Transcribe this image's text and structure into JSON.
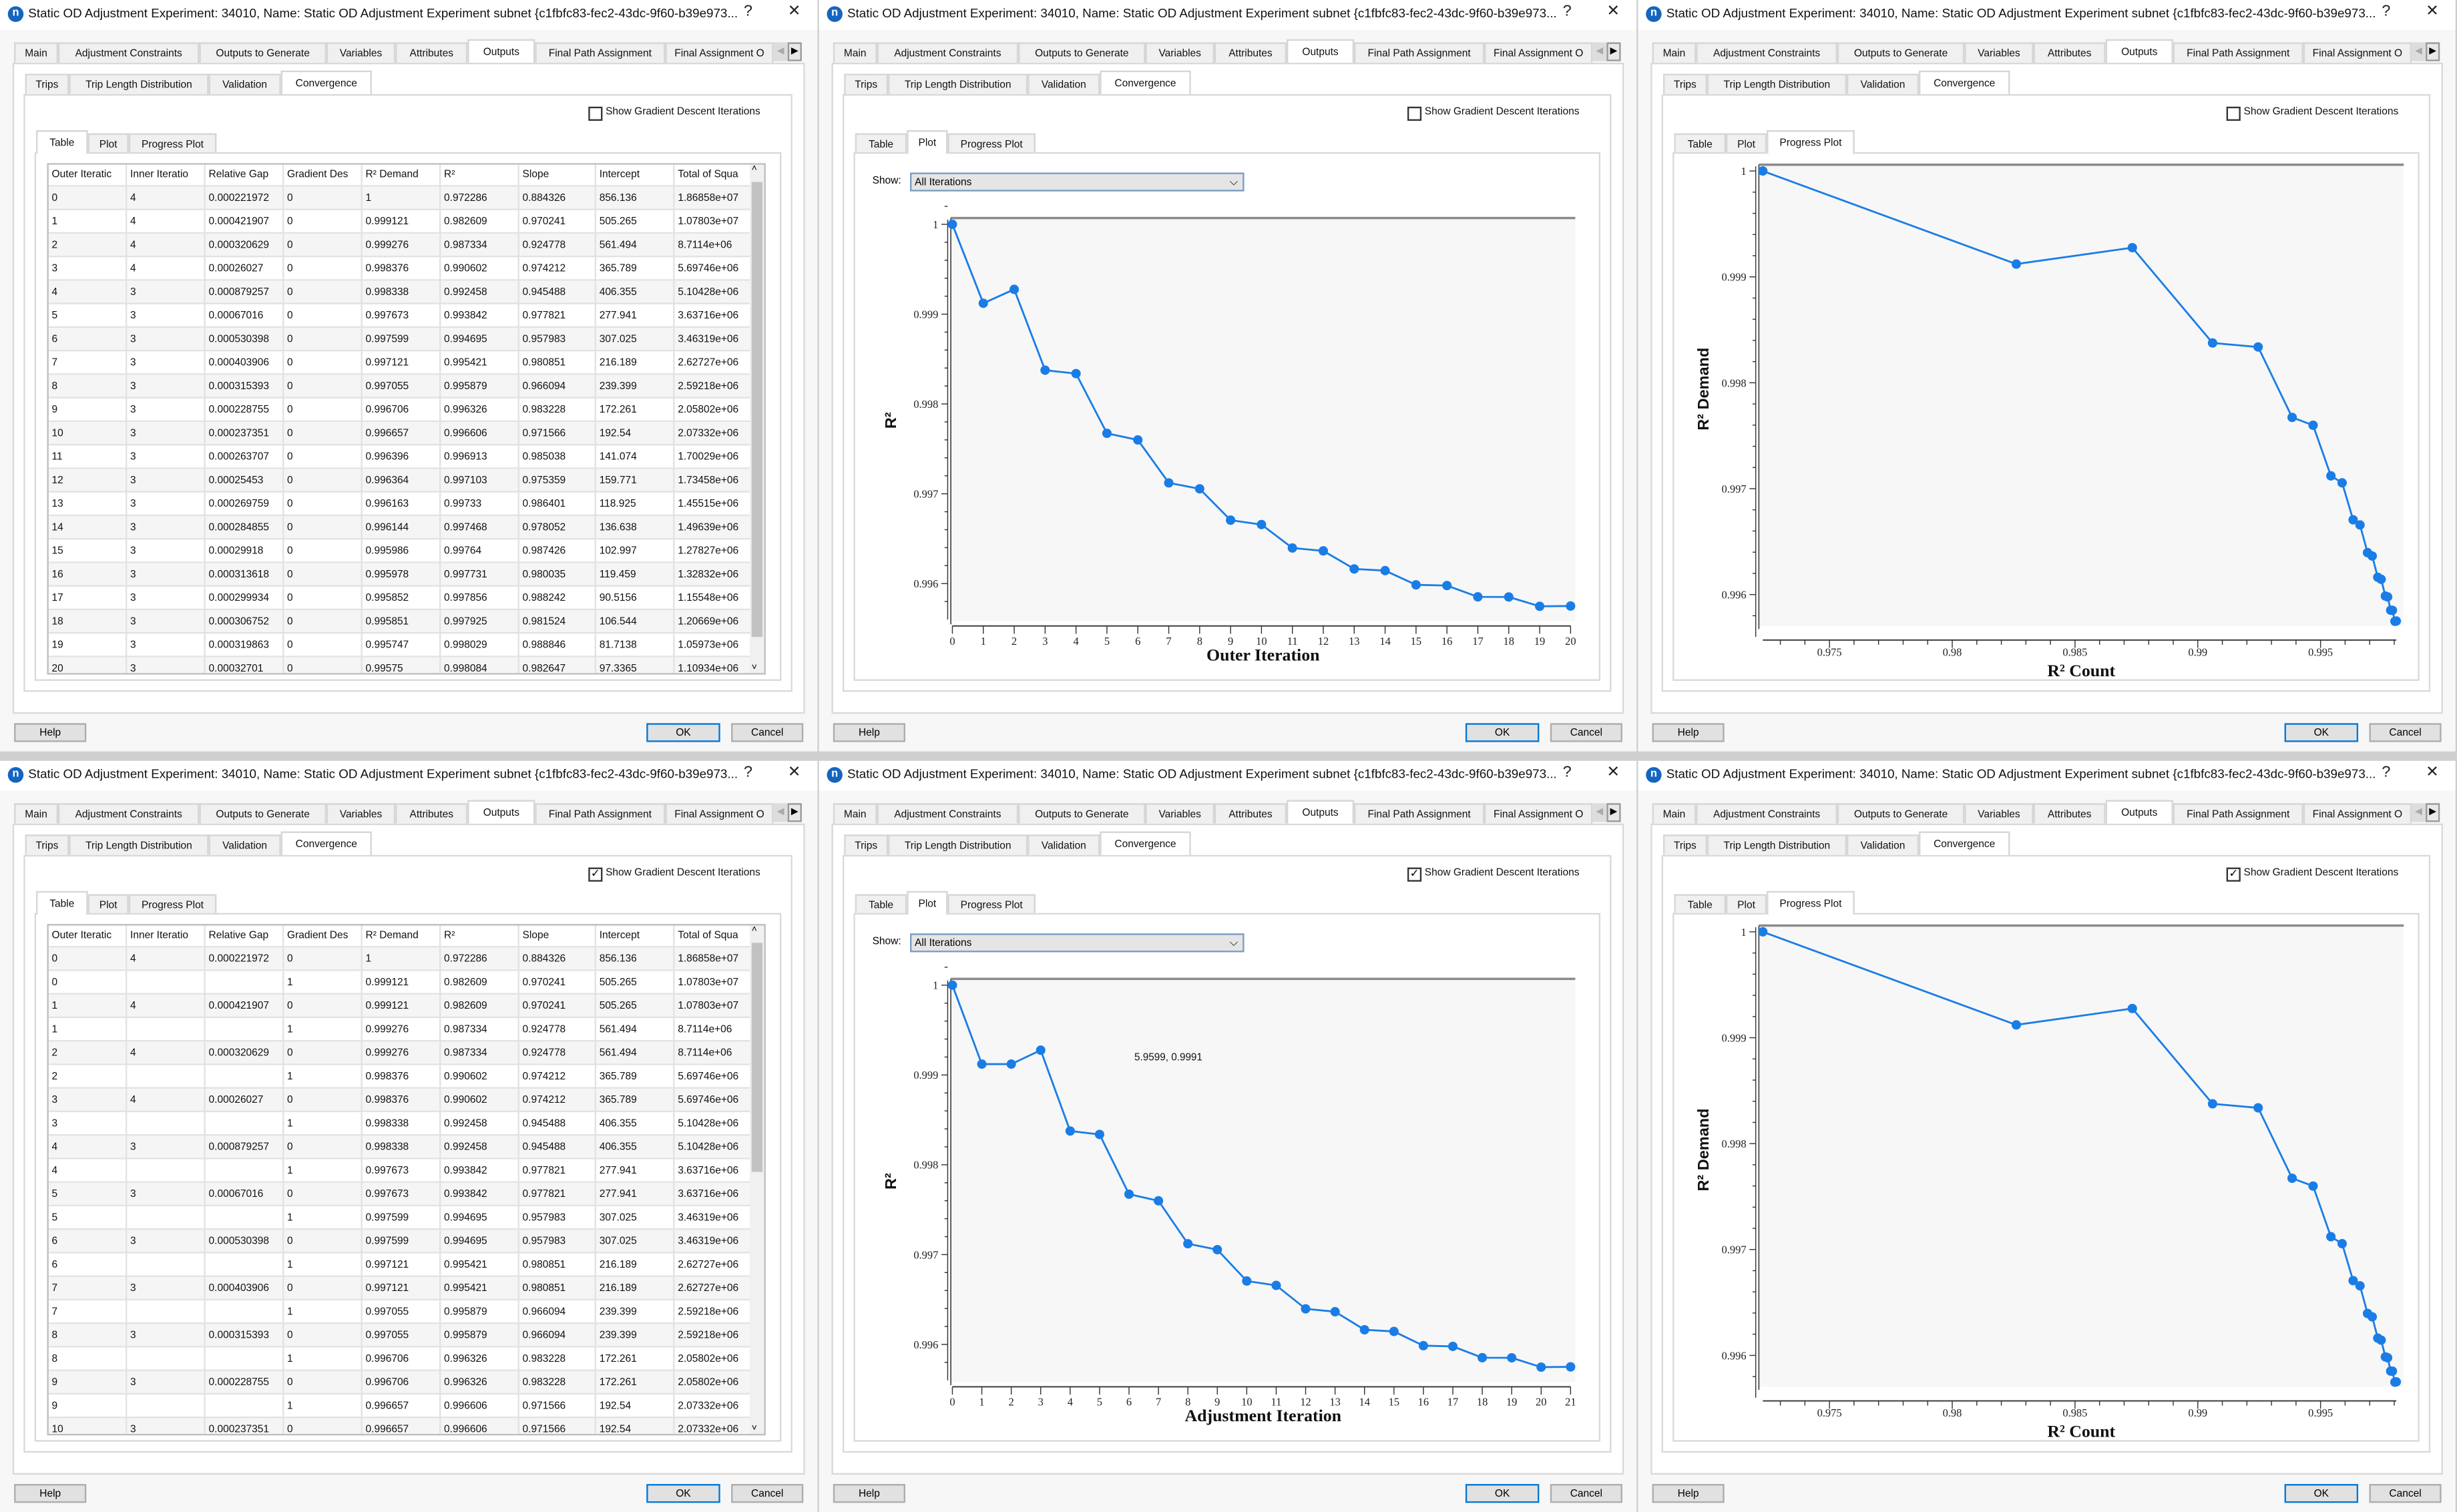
{
  "window": {
    "title": "Static OD Adjustment Experiment: 34010, Name: Static OD Adjustment Experiment subnet {c1fbfc83-fec2-43dc-9f60-b39e973...",
    "help_glyph": "?",
    "close_glyph": "✕",
    "app_icon_letter": "n"
  },
  "main_tabs": [
    "Main",
    "Adjustment Constraints",
    "Outputs to Generate",
    "Variables",
    "Attributes",
    "Outputs",
    "Final Path Assignment",
    "Final Assignment O"
  ],
  "main_tabs_active": "Outputs",
  "sub_tabs": [
    "Trips",
    "Trip Length Distribution",
    "Validation",
    "Convergence"
  ],
  "sub_tabs_active": "Convergence",
  "view_tabs": [
    "Table",
    "Plot",
    "Progress Plot"
  ],
  "checkbox_label": "Show Gradient Descent Iterations",
  "show_label": "Show:",
  "show_value": "All Iterations",
  "buttons": {
    "help": "Help",
    "ok": "OK",
    "cancel": "Cancel"
  },
  "accent_color": "#1a7de6",
  "panels": [
    {
      "active_view": "Table",
      "show_gradient_descent": false
    },
    {
      "active_view": "Plot",
      "show_gradient_descent": false
    },
    {
      "active_view": "Progress Plot",
      "show_gradient_descent": false
    },
    {
      "active_view": "Table",
      "show_gradient_descent": true
    },
    {
      "active_view": "Plot",
      "show_gradient_descent": true
    },
    {
      "active_view": "Progress Plot",
      "show_gradient_descent": true
    }
  ],
  "table_columns": [
    "Outer Iteratic",
    "Inner Iteratio",
    "Relative Gap",
    "Gradient Des",
    "R² Demand",
    "R²",
    "Slope",
    "Intercept",
    "Total of Squa"
  ],
  "tables": [
    {
      "rows": [
        [
          "0",
          "4",
          "0.000221972",
          "0",
          "1",
          "0.972286",
          "0.884326",
          "856.136",
          "1.86858e+07"
        ],
        [
          "1",
          "4",
          "0.000421907",
          "0",
          "0.999121",
          "0.982609",
          "0.970241",
          "505.265",
          "1.07803e+07"
        ],
        [
          "2",
          "4",
          "0.000320629",
          "0",
          "0.999276",
          "0.987334",
          "0.924778",
          "561.494",
          "8.7114e+06"
        ],
        [
          "3",
          "4",
          "0.00026027",
          "0",
          "0.998376",
          "0.990602",
          "0.974212",
          "365.789",
          "5.69746e+06"
        ],
        [
          "4",
          "3",
          "0.000879257",
          "0",
          "0.998338",
          "0.992458",
          "0.945488",
          "406.355",
          "5.10428e+06"
        ],
        [
          "5",
          "3",
          "0.00067016",
          "0",
          "0.997673",
          "0.993842",
          "0.977821",
          "277.941",
          "3.63716e+06"
        ],
        [
          "6",
          "3",
          "0.000530398",
          "0",
          "0.997599",
          "0.994695",
          "0.957983",
          "307.025",
          "3.46319e+06"
        ],
        [
          "7",
          "3",
          "0.000403906",
          "0",
          "0.997121",
          "0.995421",
          "0.980851",
          "216.189",
          "2.62727e+06"
        ],
        [
          "8",
          "3",
          "0.000315393",
          "0",
          "0.997055",
          "0.995879",
          "0.966094",
          "239.399",
          "2.59218e+06"
        ],
        [
          "9",
          "3",
          "0.000228755",
          "0",
          "0.996706",
          "0.996326",
          "0.983228",
          "172.261",
          "2.05802e+06"
        ],
        [
          "10",
          "3",
          "0.000237351",
          "0",
          "0.996657",
          "0.996606",
          "0.971566",
          "192.54",
          "2.07332e+06"
        ],
        [
          "11",
          "3",
          "0.000263707",
          "0",
          "0.996396",
          "0.996913",
          "0.985038",
          "141.074",
          "1.70029e+06"
        ],
        [
          "12",
          "3",
          "0.00025453",
          "0",
          "0.996364",
          "0.997103",
          "0.975359",
          "159.771",
          "1.73458e+06"
        ],
        [
          "13",
          "3",
          "0.000269759",
          "0",
          "0.996163",
          "0.99733",
          "0.986401",
          "118.925",
          "1.45515e+06"
        ],
        [
          "14",
          "3",
          "0.000284855",
          "0",
          "0.996144",
          "0.997468",
          "0.978052",
          "136.638",
          "1.49639e+06"
        ],
        [
          "15",
          "3",
          "0.00029918",
          "0",
          "0.995986",
          "0.99764",
          "0.987426",
          "102.997",
          "1.27827e+06"
        ],
        [
          "16",
          "3",
          "0.000313618",
          "0",
          "0.995978",
          "0.997731",
          "0.980035",
          "119.459",
          "1.32832e+06"
        ],
        [
          "17",
          "3",
          "0.000299934",
          "0",
          "0.995852",
          "0.997856",
          "0.988242",
          "90.5156",
          "1.15548e+06"
        ],
        [
          "18",
          "3",
          "0.000306752",
          "0",
          "0.995851",
          "0.997925",
          "0.981524",
          "106.544",
          "1.20669e+06"
        ],
        [
          "19",
          "3",
          "0.000319863",
          "0",
          "0.995747",
          "0.998029",
          "0.988846",
          "81.7138",
          "1.05973e+06"
        ],
        [
          "20",
          "3",
          "0.00032701",
          "0",
          "0.99575",
          "0.998084",
          "0.982647",
          "97.3365",
          "1.10934e+06"
        ]
      ]
    },
    {
      "rows": [
        [
          "0",
          "4",
          "0.000221972",
          "0",
          "1",
          "0.972286",
          "0.884326",
          "856.136",
          "1.86858e+07"
        ],
        [
          "0",
          "",
          "",
          "1",
          "0.999121",
          "0.982609",
          "0.970241",
          "505.265",
          "1.07803e+07"
        ],
        [
          "1",
          "4",
          "0.000421907",
          "0",
          "0.999121",
          "0.982609",
          "0.970241",
          "505.265",
          "1.07803e+07"
        ],
        [
          "1",
          "",
          "",
          "1",
          "0.999276",
          "0.987334",
          "0.924778",
          "561.494",
          "8.7114e+06"
        ],
        [
          "2",
          "4",
          "0.000320629",
          "0",
          "0.999276",
          "0.987334",
          "0.924778",
          "561.494",
          "8.7114e+06"
        ],
        [
          "2",
          "",
          "",
          "1",
          "0.998376",
          "0.990602",
          "0.974212",
          "365.789",
          "5.69746e+06"
        ],
        [
          "3",
          "4",
          "0.00026027",
          "0",
          "0.998376",
          "0.990602",
          "0.974212",
          "365.789",
          "5.69746e+06"
        ],
        [
          "3",
          "",
          "",
          "1",
          "0.998338",
          "0.992458",
          "0.945488",
          "406.355",
          "5.10428e+06"
        ],
        [
          "4",
          "3",
          "0.000879257",
          "0",
          "0.998338",
          "0.992458",
          "0.945488",
          "406.355",
          "5.10428e+06"
        ],
        [
          "4",
          "",
          "",
          "1",
          "0.997673",
          "0.993842",
          "0.977821",
          "277.941",
          "3.63716e+06"
        ],
        [
          "5",
          "3",
          "0.00067016",
          "0",
          "0.997673",
          "0.993842",
          "0.977821",
          "277.941",
          "3.63716e+06"
        ],
        [
          "5",
          "",
          "",
          "1",
          "0.997599",
          "0.994695",
          "0.957983",
          "307.025",
          "3.46319e+06"
        ],
        [
          "6",
          "3",
          "0.000530398",
          "0",
          "0.997599",
          "0.994695",
          "0.957983",
          "307.025",
          "3.46319e+06"
        ],
        [
          "6",
          "",
          "",
          "1",
          "0.997121",
          "0.995421",
          "0.980851",
          "216.189",
          "2.62727e+06"
        ],
        [
          "7",
          "3",
          "0.000403906",
          "0",
          "0.997121",
          "0.995421",
          "0.980851",
          "216.189",
          "2.62727e+06"
        ],
        [
          "7",
          "",
          "",
          "1",
          "0.997055",
          "0.995879",
          "0.966094",
          "239.399",
          "2.59218e+06"
        ],
        [
          "8",
          "3",
          "0.000315393",
          "0",
          "0.997055",
          "0.995879",
          "0.966094",
          "239.399",
          "2.59218e+06"
        ],
        [
          "8",
          "",
          "",
          "1",
          "0.996706",
          "0.996326",
          "0.983228",
          "172.261",
          "2.05802e+06"
        ],
        [
          "9",
          "3",
          "0.000228755",
          "0",
          "0.996706",
          "0.996326",
          "0.983228",
          "172.261",
          "2.05802e+06"
        ],
        [
          "9",
          "",
          "",
          "1",
          "0.996657",
          "0.996606",
          "0.971566",
          "192.54",
          "2.07332e+06"
        ],
        [
          "10",
          "3",
          "0.000237351",
          "0",
          "0.996657",
          "0.996606",
          "0.971566",
          "192.54",
          "2.07332e+06"
        ]
      ]
    }
  ],
  "chart_data": [
    {
      "type": "line",
      "xlabel": "Outer Iteration",
      "ylabel": "R²",
      "x": [
        0,
        1,
        2,
        3,
        4,
        5,
        6,
        7,
        8,
        9,
        10,
        11,
        12,
        13,
        14,
        15,
        16,
        17,
        18,
        19,
        20
      ],
      "y": [
        1,
        0.999121,
        0.999276,
        0.998376,
        0.998338,
        0.997673,
        0.997599,
        0.997121,
        0.997055,
        0.996706,
        0.996657,
        0.996396,
        0.996364,
        0.996163,
        0.996144,
        0.995986,
        0.995978,
        0.995852,
        0.995851,
        0.995747,
        0.99575
      ],
      "yticks": [
        "1",
        "0.999",
        "0.998",
        "0.997",
        "0.996"
      ],
      "grid": false
    },
    {
      "type": "line",
      "xlabel": "R² Count",
      "ylabel": "R² Demand",
      "x": [
        0.972286,
        0.982609,
        0.987334,
        0.990602,
        0.992458,
        0.993842,
        0.994695,
        0.995421,
        0.995879,
        0.996326,
        0.996606,
        0.996913,
        0.997103,
        0.99733,
        0.997468,
        0.99764,
        0.997731,
        0.997856,
        0.997925,
        0.998029,
        0.998084
      ],
      "y": [
        1,
        0.999121,
        0.999276,
        0.998376,
        0.998338,
        0.997673,
        0.997599,
        0.997121,
        0.997055,
        0.996706,
        0.996657,
        0.996396,
        0.996364,
        0.996163,
        0.996144,
        0.995986,
        0.995978,
        0.995852,
        0.995851,
        0.995747,
        0.99575
      ],
      "xticks": [
        "0.975",
        "0.98",
        "0.985",
        "0.99",
        "0.995"
      ],
      "yticks": [
        "1",
        "0.999",
        "0.998",
        "0.997",
        "0.996"
      ],
      "grid": false
    },
    {
      "type": "line",
      "xlabel": "Adjustment Iteration",
      "ylabel": "R²",
      "x": [
        0,
        1,
        2,
        3,
        4,
        5,
        6,
        7,
        8,
        9,
        10,
        11,
        12,
        13,
        14,
        15,
        16,
        17,
        18,
        19,
        20,
        21
      ],
      "y": [
        1,
        0.999121,
        0.999121,
        0.999276,
        0.998376,
        0.998338,
        0.997673,
        0.997599,
        0.997121,
        0.997055,
        0.996706,
        0.996657,
        0.996396,
        0.996364,
        0.996163,
        0.996144,
        0.995986,
        0.995978,
        0.995852,
        0.995851,
        0.995747,
        0.99575
      ],
      "yticks": [
        "1",
        "0.999",
        "0.998",
        "0.997",
        "0.996"
      ],
      "tooltip": "5.9599, 0.9991",
      "grid": false
    },
    {
      "type": "line",
      "xlabel": "R² Count",
      "ylabel": "R² Demand",
      "x": [
        0.972286,
        0.982609,
        0.987334,
        0.990602,
        0.992458,
        0.993842,
        0.994695,
        0.995421,
        0.995879,
        0.996326,
        0.996606,
        0.996913,
        0.997103,
        0.99733,
        0.997468,
        0.99764,
        0.997731,
        0.997856,
        0.997925,
        0.998029,
        0.998084
      ],
      "y": [
        1,
        0.999121,
        0.999276,
        0.998376,
        0.998338,
        0.997673,
        0.997599,
        0.997121,
        0.997055,
        0.996706,
        0.996657,
        0.996396,
        0.996364,
        0.996163,
        0.996144,
        0.995986,
        0.995978,
        0.995852,
        0.995851,
        0.995747,
        0.99575
      ],
      "xticks": [
        "0.975",
        "0.98",
        "0.985",
        "0.99",
        "0.995"
      ],
      "yticks": [
        "1",
        "0.999",
        "0.998",
        "0.997",
        "0.996"
      ],
      "grid": false
    }
  ]
}
